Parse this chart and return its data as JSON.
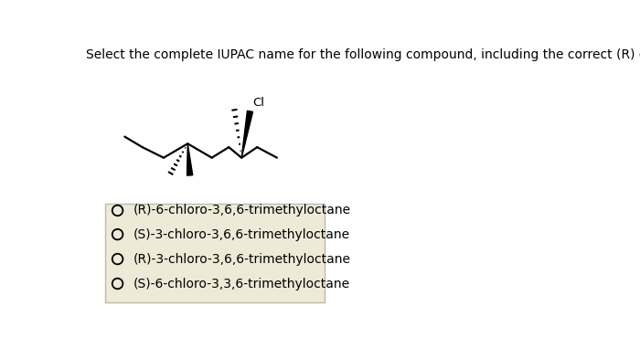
{
  "title": "Select the complete IUPAC name for the following compound, including the correct (R) or (S) designation.",
  "title_fontsize": 10.0,
  "bg_color": "#ffffff",
  "options": [
    "(R)-6-chloro-3,6,6-trimethyloctane",
    "(S)-3-chloro-3,6,6-trimethyloctane",
    "(R)-3-chloro-3,6,6-trimethyloctane",
    "(S)-6-chloro-3,3,6-trimethyloctane"
  ],
  "option_fontsize": 10,
  "box_facecolor": "#eeead8",
  "box_edgecolor": "#bbbbaa",
  "circle_color": "#000000",
  "mol_lw": 1.6,
  "wedge_lw": 1.4,
  "hash_n": 7
}
